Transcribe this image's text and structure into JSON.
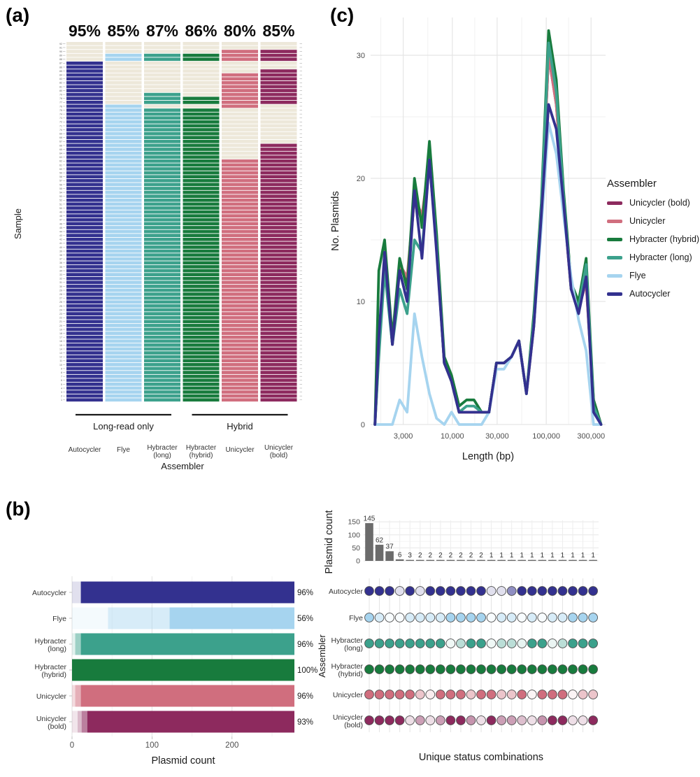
{
  "colors": {
    "autocycler": "#33318F",
    "flye": "#A6D4EF",
    "hybracter_long": "#3CA18C",
    "hybracter_hybrid": "#187B3D",
    "unicycler": "#D06E7E",
    "unicycler_bold": "#8D2A5E",
    "empty_cell": "#EDE8DA",
    "bar_gray": "#6B6B6B"
  },
  "panel_a": {
    "label": "(a)",
    "y_axis_label": "Sample",
    "x_axis_label": "Assembler",
    "samples": {
      "from": 1,
      "to": 92
    },
    "column_percentages": [
      "95%",
      "85%",
      "87%",
      "86%",
      "80%",
      "85%"
    ],
    "columns": [
      {
        "key": "autocycler",
        "label_lines": [
          "Autocycler"
        ]
      },
      {
        "key": "flye",
        "label_lines": [
          "Flye"
        ]
      },
      {
        "key": "hybracter_long",
        "label_lines": [
          "Hybracter",
          "(long)"
        ]
      },
      {
        "key": "hybracter_hybrid",
        "label_lines": [
          "Hybracter",
          "(hybrid)"
        ]
      },
      {
        "key": "unicycler",
        "label_lines": [
          "Unicycler"
        ]
      },
      {
        "key": "unicycler_bold",
        "label_lines": [
          "Unicycler",
          "(bold)"
        ]
      }
    ],
    "groups": [
      {
        "label": "Long-read only",
        "col_start": 0,
        "col_end": 2
      },
      {
        "label": "Hybrid",
        "col_start": 3,
        "col_end": 5
      }
    ]
  },
  "panel_c": {
    "label": "(c)",
    "y_axis_label": "No. Plasmids",
    "x_axis_label": "Length (bp)",
    "y_ticks": [
      0,
      10,
      20,
      30
    ],
    "x_ticks": [
      {
        "value": 3000,
        "label": "3,000"
      },
      {
        "value": 10000,
        "label": "10,000"
      },
      {
        "value": 30000,
        "label": "30,000"
      },
      {
        "value": 100000,
        "label": "100,000"
      },
      {
        "value": 300000,
        "label": "300,000"
      }
    ],
    "legend": {
      "title": "Assembler",
      "entries": [
        {
          "label": "Unicycler (bold)",
          "color_key": "unicycler_bold"
        },
        {
          "label": "Unicycler",
          "color_key": "unicycler"
        },
        {
          "label": "Hybracter (hybrid)",
          "color_key": "hybracter_hybrid"
        },
        {
          "label": "Hybracter (long)",
          "color_key": "hybracter_long"
        },
        {
          "label": "Flye",
          "color_key": "flye"
        },
        {
          "label": "Autocycler",
          "color_key": "autocycler"
        }
      ]
    }
  },
  "panel_b": {
    "label": "(b)",
    "stacked": {
      "x_label": "Plasmid count",
      "x_ticks": [
        0,
        100,
        200
      ],
      "total": 278,
      "rows": [
        {
          "name_lines": [
            "Autocycler"
          ],
          "color_key": "autocycler",
          "pct": "96%",
          "segments": [
            {
              "value": 11,
              "opacity": 0.15
            },
            {
              "value": 267,
              "opacity": 1
            }
          ]
        },
        {
          "name_lines": [
            "Flye"
          ],
          "color_key": "flye",
          "pct": "56%",
          "segments": [
            {
              "value": 45,
              "opacity": 0.12
            },
            {
              "value": 77,
              "opacity": 0.45
            },
            {
              "value": 156,
              "opacity": 1
            }
          ]
        },
        {
          "name_lines": [
            "Hybracter",
            "(long)"
          ],
          "color_key": "hybracter_long",
          "pct": "96%",
          "segments": [
            {
              "value": 4,
              "opacity": 0.15
            },
            {
              "value": 7,
              "opacity": 0.5
            },
            {
              "value": 267,
              "opacity": 1
            }
          ]
        },
        {
          "name_lines": [
            "Hybracter",
            "(hybrid)"
          ],
          "color_key": "hybracter_hybrid",
          "pct": "100%",
          "segments": [
            {
              "value": 278,
              "opacity": 1
            }
          ]
        },
        {
          "name_lines": [
            "Unicycler"
          ],
          "color_key": "unicycler",
          "pct": "96%",
          "segments": [
            {
              "value": 4,
              "opacity": 0.25
            },
            {
              "value": 7,
              "opacity": 0.55
            },
            {
              "value": 267,
              "opacity": 1
            }
          ]
        },
        {
          "name_lines": [
            "Unicycler",
            "(bold)"
          ],
          "color_key": "unicycler_bold",
          "pct": "93%",
          "segments": [
            {
              "value": 7,
              "opacity": 0.12
            },
            {
              "value": 5,
              "opacity": 0.32
            },
            {
              "value": 7,
              "opacity": 0.6
            },
            {
              "value": 259,
              "opacity": 1
            }
          ]
        }
      ]
    },
    "upset": {
      "count_axis_label": "Plasmid count",
      "count_ticks": [
        0,
        50,
        100,
        150
      ],
      "y_axis_label": "Assembler",
      "x_label": "Unique status combinations",
      "combination_counts": [
        145,
        62,
        37,
        6,
        3,
        2,
        2,
        2,
        2,
        2,
        2,
        2,
        1,
        1,
        1,
        1,
        1,
        1,
        1,
        1,
        1,
        1,
        1
      ],
      "rows": [
        {
          "name_lines": [
            "Autocycler"
          ],
          "color_key": "autocycler",
          "dot_opacities": [
            1,
            1,
            1,
            0.15,
            1,
            0.15,
            1,
            1,
            1,
            1,
            1,
            1,
            0.15,
            0.15,
            0.55,
            1,
            1,
            1,
            1,
            1,
            1,
            1,
            1
          ]
        },
        {
          "name_lines": [
            "Flye"
          ],
          "color_key": "flye",
          "dot_opacities": [
            1,
            0.45,
            0.08,
            0.08,
            0.45,
            0.45,
            0.45,
            0.45,
            1,
            1,
            1,
            1,
            0.08,
            0.45,
            0.45,
            0.08,
            0.45,
            0.08,
            0.45,
            0.45,
            1,
            1,
            1
          ]
        },
        {
          "name_lines": [
            "Hybracter",
            "(long)"
          ],
          "color_key": "hybracter_long",
          "dot_opacities": [
            1,
            1,
            1,
            1,
            1,
            1,
            1,
            1,
            0.08,
            0.35,
            1,
            1,
            0.08,
            0.35,
            0.35,
            0.12,
            1,
            1,
            0.1,
            0.35,
            1,
            1,
            1
          ]
        },
        {
          "name_lines": [
            "Hybracter",
            "(hybrid)"
          ],
          "color_key": "hybracter_hybrid",
          "dot_opacities": [
            1,
            1,
            1,
            1,
            1,
            1,
            1,
            1,
            1,
            1,
            1,
            1,
            1,
            1,
            1,
            1,
            1,
            1,
            1,
            1,
            1,
            1,
            1
          ]
        },
        {
          "name_lines": [
            "Unicycler"
          ],
          "color_key": "unicycler",
          "dot_opacities": [
            1,
            1,
            1,
            1,
            1,
            0.4,
            0.12,
            1,
            1,
            1,
            0.4,
            1,
            1,
            0.4,
            0.4,
            1,
            0.08,
            1,
            1,
            1,
            0.08,
            0.4,
            0.4
          ]
        },
        {
          "name_lines": [
            "Unicycler",
            "(bold)"
          ],
          "color_key": "unicycler_bold",
          "dot_opacities": [
            1,
            1,
            1,
            1,
            0.15,
            0.45,
            0.15,
            0.45,
            1,
            1,
            0.5,
            0.15,
            1,
            0.45,
            0.45,
            0.3,
            0.15,
            0.5,
            1,
            1,
            0.15,
            0.15,
            1
          ]
        }
      ]
    }
  },
  "chart_data": [
    {
      "panel": "a",
      "type": "heatmap",
      "rows": "samples 1 to 92",
      "categories": [
        "autocycler",
        "flye",
        "hybracter_long",
        "hybracter_hybrid",
        "unicycler",
        "unicycler_bold"
      ],
      "column_complete_pct": [
        95,
        85,
        87,
        86,
        80,
        85
      ],
      "filled_sample_ranges": {
        "autocycler": [
          [
            1,
            87
          ]
        ],
        "flye": [
          [
            1,
            76
          ],
          [
            88,
            89
          ]
        ],
        "hybracter_long": [
          [
            1,
            75
          ],
          [
            77,
            79
          ],
          [
            88,
            89
          ]
        ],
        "hybracter_hybrid": [
          [
            1,
            75
          ],
          [
            77,
            78
          ],
          [
            88,
            89
          ]
        ],
        "unicycler": [
          [
            1,
            62
          ],
          [
            76,
            84
          ],
          [
            88,
            90
          ]
        ],
        "unicycler_bold": [
          [
            1,
            66
          ],
          [
            77,
            85
          ],
          [
            88,
            90
          ]
        ]
      }
    },
    {
      "panel": "c",
      "type": "line",
      "xscale": "log",
      "xlabel": "Length (bp)",
      "ylabel": "No. Plasmids",
      "ylim": [
        0,
        33
      ],
      "x": [
        1500,
        1650,
        1900,
        2300,
        2750,
        3300,
        3950,
        4750,
        5700,
        6800,
        8200,
        9800,
        11800,
        14200,
        17000,
        20500,
        24600,
        29500,
        35500,
        42600,
        51200,
        61500,
        73800,
        88700,
        106000,
        128000,
        153000,
        184000,
        221000,
        266000,
        319000,
        383000
      ],
      "series": [
        {
          "name": "Unicycler (bold)",
          "color_key": "unicycler_bold",
          "values": [
            0,
            6,
            13.5,
            6.5,
            13,
            11.5,
            18.5,
            16.5,
            21.5,
            14.5,
            5,
            3.5,
            1,
            1,
            1,
            1,
            1,
            5,
            5,
            5.5,
            6.8,
            2.5,
            8,
            17,
            30,
            26,
            18,
            11,
            9.5,
            11.5,
            2,
            0
          ]
        },
        {
          "name": "Unicycler",
          "color_key": "unicycler",
          "values": [
            0,
            6,
            13.5,
            6.5,
            13,
            12,
            18.5,
            17,
            21.5,
            14.5,
            5,
            3.5,
            1,
            1,
            1,
            1,
            1,
            5,
            5,
            5.5,
            6.8,
            2.5,
            8,
            17,
            30,
            26,
            18,
            11,
            9.5,
            11.5,
            1.5,
            0
          ]
        },
        {
          "name": "Hybracter (hybrid)",
          "color_key": "hybracter_hybrid",
          "values": [
            0,
            12.5,
            15,
            7,
            13.5,
            11,
            20,
            16,
            23,
            15.5,
            5.5,
            4,
            1.5,
            2,
            2,
            1,
            1,
            5,
            5,
            5.5,
            6.8,
            2.5,
            9,
            18,
            32,
            28,
            19,
            11.5,
            10,
            13.5,
            2,
            0
          ]
        },
        {
          "name": "Hybracter (long)",
          "color_key": "hybracter_long",
          "values": [
            0,
            5.5,
            12.5,
            6.5,
            11,
            9,
            15,
            14,
            21.5,
            14.5,
            5,
            3.5,
            1,
            1.5,
            1.5,
            1,
            1,
            5,
            5,
            5.5,
            6.8,
            2.5,
            8.5,
            17.5,
            31,
            27,
            18.5,
            11,
            9.5,
            13,
            1.5,
            0
          ]
        },
        {
          "name": "Flye",
          "color_key": "flye",
          "values": [
            0,
            0,
            0,
            0,
            2,
            1,
            9,
            5.5,
            2.5,
            0.5,
            0,
            1,
            0,
            0,
            0,
            0,
            1,
            4.5,
            4.5,
            5.5,
            6.8,
            2.5,
            8,
            16,
            24.5,
            22,
            17,
            12,
            8.5,
            6,
            0,
            0
          ]
        },
        {
          "name": "Autocycler",
          "color_key": "autocycler",
          "values": [
            0,
            7,
            14,
            6.5,
            12.5,
            10,
            19,
            13.5,
            21.5,
            14,
            5,
            3.5,
            1,
            1,
            1,
            1,
            1,
            5,
            5,
            5.5,
            6.8,
            2.5,
            8,
            17,
            26,
            24,
            18,
            11,
            9,
            12,
            1,
            0
          ]
        }
      ]
    },
    {
      "panel": "b-left",
      "type": "bar",
      "orientation": "horizontal",
      "categories": [
        "Autocycler",
        "Flye",
        "Hybracter (long)",
        "Hybracter (hybrid)",
        "Unicycler",
        "Unicycler (bold)"
      ],
      "totals": [
        278,
        278,
        278,
        278,
        278,
        278
      ],
      "complete_pct_labels": [
        "96%",
        "56%",
        "96%",
        "100%",
        "96%",
        "93%"
      ],
      "xlabel": "Plasmid count"
    },
    {
      "panel": "b-right-top",
      "type": "bar",
      "values": [
        145,
        62,
        37,
        6,
        3,
        2,
        2,
        2,
        2,
        2,
        2,
        2,
        1,
        1,
        1,
        1,
        1,
        1,
        1,
        1,
        1,
        1,
        1
      ],
      "ylabel": "Plasmid count",
      "ylim": [
        0,
        160
      ]
    }
  ]
}
